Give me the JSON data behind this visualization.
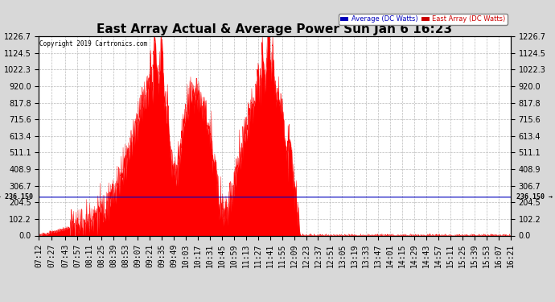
{
  "title": "East Array Actual & Average Power Sun Jan 6 16:23",
  "copyright": "Copyright 2019 Cartronics.com",
  "ymax": 1226.7,
  "ymin": 0.0,
  "yticks": [
    0.0,
    102.2,
    204.5,
    306.7,
    408.9,
    511.1,
    613.4,
    715.6,
    817.8,
    920.0,
    1022.3,
    1124.5,
    1226.7
  ],
  "hline_value": 236.15,
  "legend_labels": [
    "Average (DC Watts)",
    "East Array (DC Watts)"
  ],
  "legend_colors": [
    "#0000bb",
    "#cc0000"
  ],
  "background_color": "#d8d8d8",
  "plot_bg_color": "#ffffff",
  "fill_color": "#ff0000",
  "avg_line_color": "#0000bb",
  "grid_color": "#aaaaaa",
  "title_fontsize": 11,
  "tick_fontsize": 7,
  "time_labels": [
    "07:12",
    "07:27",
    "07:43",
    "07:57",
    "08:11",
    "08:25",
    "08:39",
    "08:53",
    "09:07",
    "09:21",
    "09:35",
    "09:49",
    "10:03",
    "10:17",
    "10:31",
    "10:45",
    "10:59",
    "11:13",
    "11:27",
    "11:41",
    "11:55",
    "12:09",
    "12:23",
    "12:37",
    "12:51",
    "13:05",
    "13:19",
    "13:33",
    "13:47",
    "14:01",
    "14:15",
    "14:29",
    "14:43",
    "14:57",
    "15:11",
    "15:25",
    "15:39",
    "15:53",
    "16:07",
    "16:21"
  ]
}
